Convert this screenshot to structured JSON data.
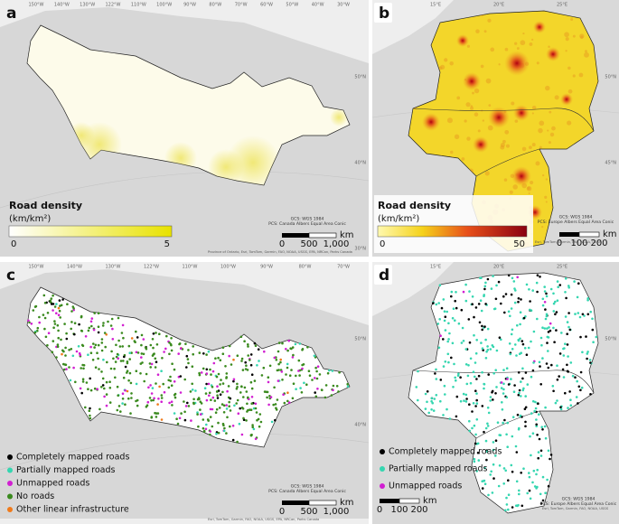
{
  "panels": [
    {
      "label": "a",
      "graticule_top": [
        "150°W",
        "140°W",
        "130°W",
        "122°W",
        "110°W",
        "100°W",
        "90°W",
        "80°W",
        "70°W",
        "60°W",
        "50°W",
        "40°W",
        "30°W"
      ],
      "graticule_right": [
        "50°N",
        "40°N",
        "30°N"
      ],
      "legend_title": "Road density",
      "legend_unit": "(km/km²)",
      "legend_ticks": [
        "0",
        "5"
      ],
      "crs": [
        "GCS: WGS 1984",
        "PCS: Canada Albers Equal Area Conic"
      ],
      "scale_ticks": [
        "0",
        "500",
        "1,000"
      ],
      "scale_unit": "km",
      "attribution": "Province of Ontario, Esri, TomTom, Garmin, FAO, NOAA, USGS, EPA, NRCan, Parks Canada"
    },
    {
      "label": "b",
      "graticule_top": [
        "15°E",
        "20°E",
        "25°E"
      ],
      "graticule_right": [
        "50°N",
        "45°N"
      ],
      "legend_title": "Road density",
      "legend_unit": "(km/km²)",
      "legend_ticks": [
        "0",
        "50"
      ],
      "crs": [
        "GCS: WGS 1984",
        "PCS: Europe Albers Equal Area Conic"
      ],
      "scale_ticks": [
        "0",
        "100",
        "200"
      ],
      "scale_unit": "km",
      "attribution": "Esri, TomTom, Garmin, FAO, NOAA, USGS"
    },
    {
      "label": "c",
      "graticule_top": [
        "150°W",
        "140°W",
        "130°W",
        "122°W",
        "110°W",
        "100°W",
        "90°W",
        "80°W",
        "70°W"
      ],
      "graticule_right": [
        "50°N",
        "40°N"
      ],
      "legend_items": [
        "Completely mapped roads",
        "Partially mapped roads",
        "Unmapped roads",
        "No roads",
        "Other linear infrastructure"
      ],
      "crs": [
        "GCS: WGS 1984",
        "PCS: Canada Albers Equal Area Conic"
      ],
      "scale_ticks": [
        "0",
        "500",
        "1,000"
      ],
      "scale_unit": "km",
      "attribution": "Esri, TomTom, Garmin, FAO, NOAA, USGS, EPA, NRCan, Parks Canada"
    },
    {
      "label": "d",
      "graticule_top": [
        "15°E",
        "20°E",
        "25°E"
      ],
      "graticule_right": [
        "50°N"
      ],
      "legend_items": [
        "Completely mapped roads",
        "Partially mapped roads",
        "Unmapped roads"
      ],
      "crs": [
        "GCS: WGS 1984",
        "PCS: Europe Albers Equal Area Conic"
      ],
      "scale_ticks": [
        "0",
        "100",
        "200"
      ],
      "scale_unit": "km",
      "attribution": "Esri, TomTom, Garmin, FAO, NOAA, USGS"
    }
  ]
}
